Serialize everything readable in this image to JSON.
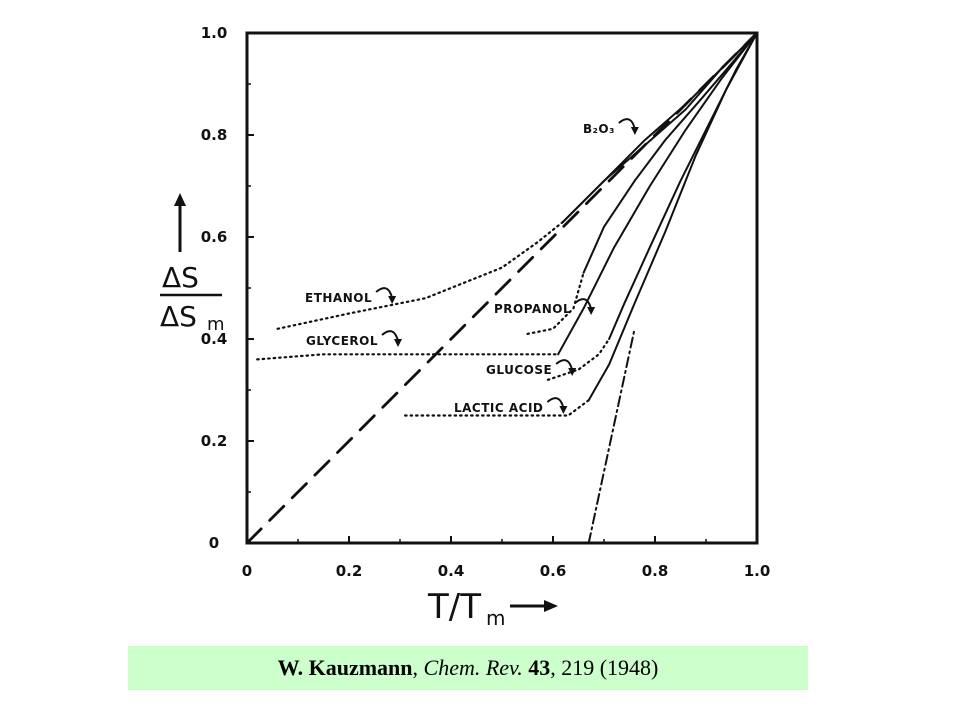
{
  "chart_data": {
    "type": "line",
    "xlabel": "T/T",
    "xlabel_sub": "m",
    "ylabel_num": "ΔS",
    "ylabel_den": "ΔS",
    "ylabel_sub": "m",
    "xlim": [
      0,
      1.0
    ],
    "ylim": [
      0,
      1.0
    ],
    "x_ticks": [
      "0",
      "0.2",
      "0.4",
      "0.6",
      "0.8",
      "1.0"
    ],
    "y_ticks": [
      "0",
      "0.2",
      "0.4",
      "0.6",
      "0.8",
      "1.0"
    ],
    "grid": false,
    "series": [
      {
        "name": "B₂O₃",
        "style": "solid",
        "x": [
          0.62,
          0.7,
          0.78,
          0.86,
          0.93,
          1.0
        ],
        "y": [
          0.63,
          0.71,
          0.79,
          0.86,
          0.93,
          1.0
        ]
      },
      {
        "name": "Ethanol",
        "style": "dotted",
        "x": [
          0.06,
          0.2,
          0.35,
          0.5,
          0.57,
          0.62
        ],
        "y": [
          0.42,
          0.45,
          0.48,
          0.54,
          0.59,
          0.63
        ]
      },
      {
        "name": "Glycerol",
        "style": "dotted",
        "x": [
          0.02,
          0.15,
          0.3,
          0.45,
          0.55,
          0.61
        ],
        "y": [
          0.36,
          0.37,
          0.37,
          0.37,
          0.37,
          0.37
        ]
      },
      {
        "name": "Propanol",
        "style": "dotted",
        "x": [
          0.55,
          0.6,
          0.64,
          0.66
        ],
        "y": [
          0.41,
          0.42,
          0.46,
          0.53
        ]
      },
      {
        "name": "Glucose",
        "style": "dotted",
        "x": [
          0.59,
          0.65,
          0.69,
          0.71
        ],
        "y": [
          0.32,
          0.34,
          0.37,
          0.4
        ]
      },
      {
        "name": "Lactic Acid",
        "style": "dotted",
        "x": [
          0.31,
          0.45,
          0.55,
          0.63,
          0.67
        ],
        "y": [
          0.25,
          0.25,
          0.25,
          0.25,
          0.28
        ]
      },
      {
        "name": "Ethanol (liquid)",
        "style": "solid",
        "x": [
          0.62,
          0.7,
          0.78,
          0.86,
          0.93,
          1.0
        ],
        "y": [
          0.63,
          0.71,
          0.78,
          0.85,
          0.93,
          1.0
        ]
      },
      {
        "name": "Propanol (liquid)",
        "style": "solid",
        "x": [
          0.66,
          0.7,
          0.76,
          0.82,
          0.89,
          0.95,
          1.0
        ],
        "y": [
          0.53,
          0.62,
          0.71,
          0.79,
          0.87,
          0.94,
          1.0
        ]
      },
      {
        "name": "Glycerol (liquid)",
        "style": "solid",
        "x": [
          0.61,
          0.66,
          0.72,
          0.79,
          0.86,
          0.93,
          1.0
        ],
        "y": [
          0.37,
          0.46,
          0.58,
          0.7,
          0.81,
          0.91,
          1.0
        ]
      },
      {
        "name": "Glucose (liquid)",
        "style": "solid",
        "x": [
          0.71,
          0.74,
          0.79,
          0.85,
          0.91,
          0.96,
          1.0
        ],
        "y": [
          0.4,
          0.47,
          0.58,
          0.71,
          0.83,
          0.93,
          1.0
        ]
      },
      {
        "name": "Lactic Acid (liquid)",
        "style": "solid",
        "x": [
          0.67,
          0.71,
          0.76,
          0.82,
          0.88,
          0.94,
          1.0
        ],
        "y": [
          0.28,
          0.35,
          0.47,
          0.61,
          0.76,
          0.89,
          1.0
        ]
      },
      {
        "name": "diagonal",
        "style": "dashed",
        "x": [
          0.0,
          1.0
        ],
        "y": [
          0.0,
          1.0
        ]
      },
      {
        "name": "extrapolation",
        "style": "dashdot",
        "x": [
          0.67,
          0.7,
          0.73,
          0.76
        ],
        "y": [
          0.0,
          0.14,
          0.28,
          0.42
        ]
      }
    ],
    "annotations": [
      {
        "text": "B₂O₃",
        "series": "B₂O₃"
      },
      {
        "text": "ETHANOL",
        "series": "Ethanol"
      },
      {
        "text": "GLYCEROL",
        "series": "Glycerol"
      },
      {
        "text": "PROPANOL",
        "series": "Propanol"
      },
      {
        "text": "GLUCOSE",
        "series": "Glucose"
      },
      {
        "text": "LACTIC ACID",
        "series": "Lactic Acid"
      }
    ]
  },
  "citation": {
    "author": "W. Kauzmann",
    "sep1": ", ",
    "journal": "Chem. Rev.",
    "sep2": " ",
    "volume": "43",
    "rest": ", 219 (1948)"
  }
}
